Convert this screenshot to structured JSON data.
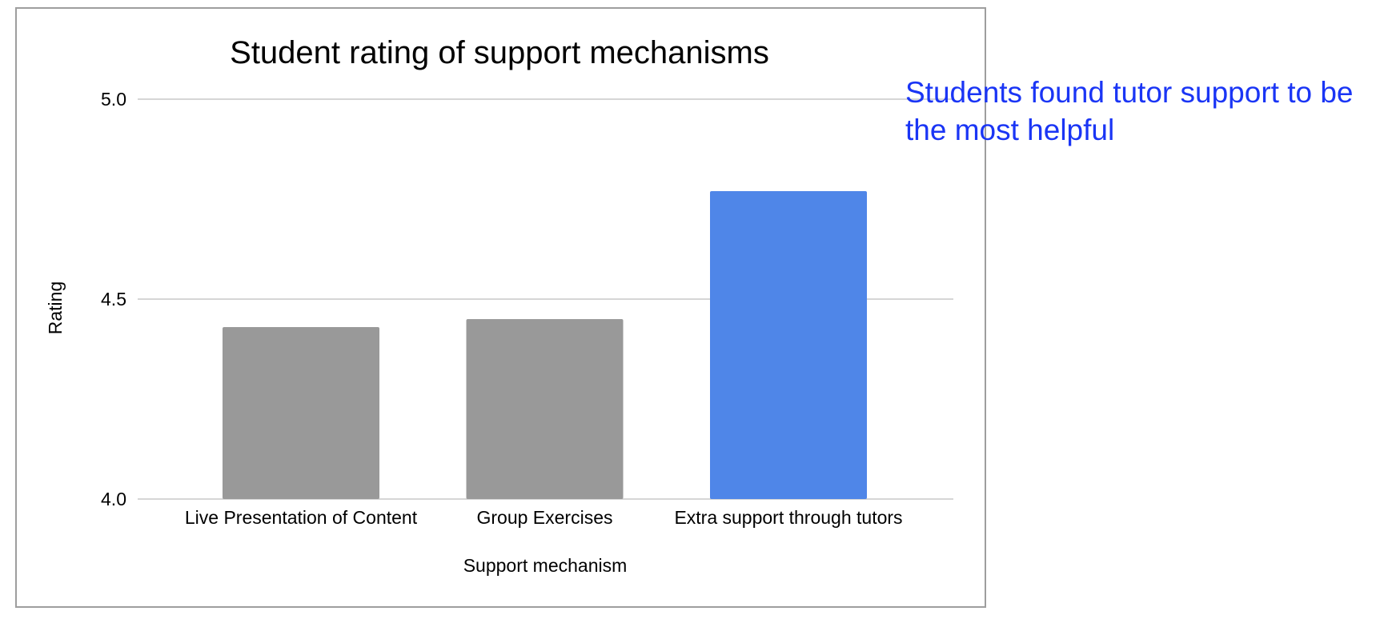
{
  "chart_data": {
    "type": "bar",
    "title": "Student rating of support mechanisms",
    "xlabel": "Support mechanism",
    "ylabel": "Rating",
    "categories": [
      "Live Presentation of Content",
      "Group Exercises",
      "Extra support through tutors"
    ],
    "values": [
      4.43,
      4.45,
      4.77
    ],
    "ylim": [
      4.0,
      5.0
    ],
    "yticks": [
      "4.0",
      "4.5",
      "5.0"
    ],
    "grid": true,
    "legend": "none",
    "colors": {
      "default_bar": "#999999",
      "highlight_bar": "#4f86e8",
      "gridline": "#c8c8c8",
      "frame": "#9e9e9e"
    },
    "highlight_index": 2
  },
  "annotation": {
    "text": "Students found tutor support to be\nthe most helpful",
    "color": "#1a35f5"
  }
}
